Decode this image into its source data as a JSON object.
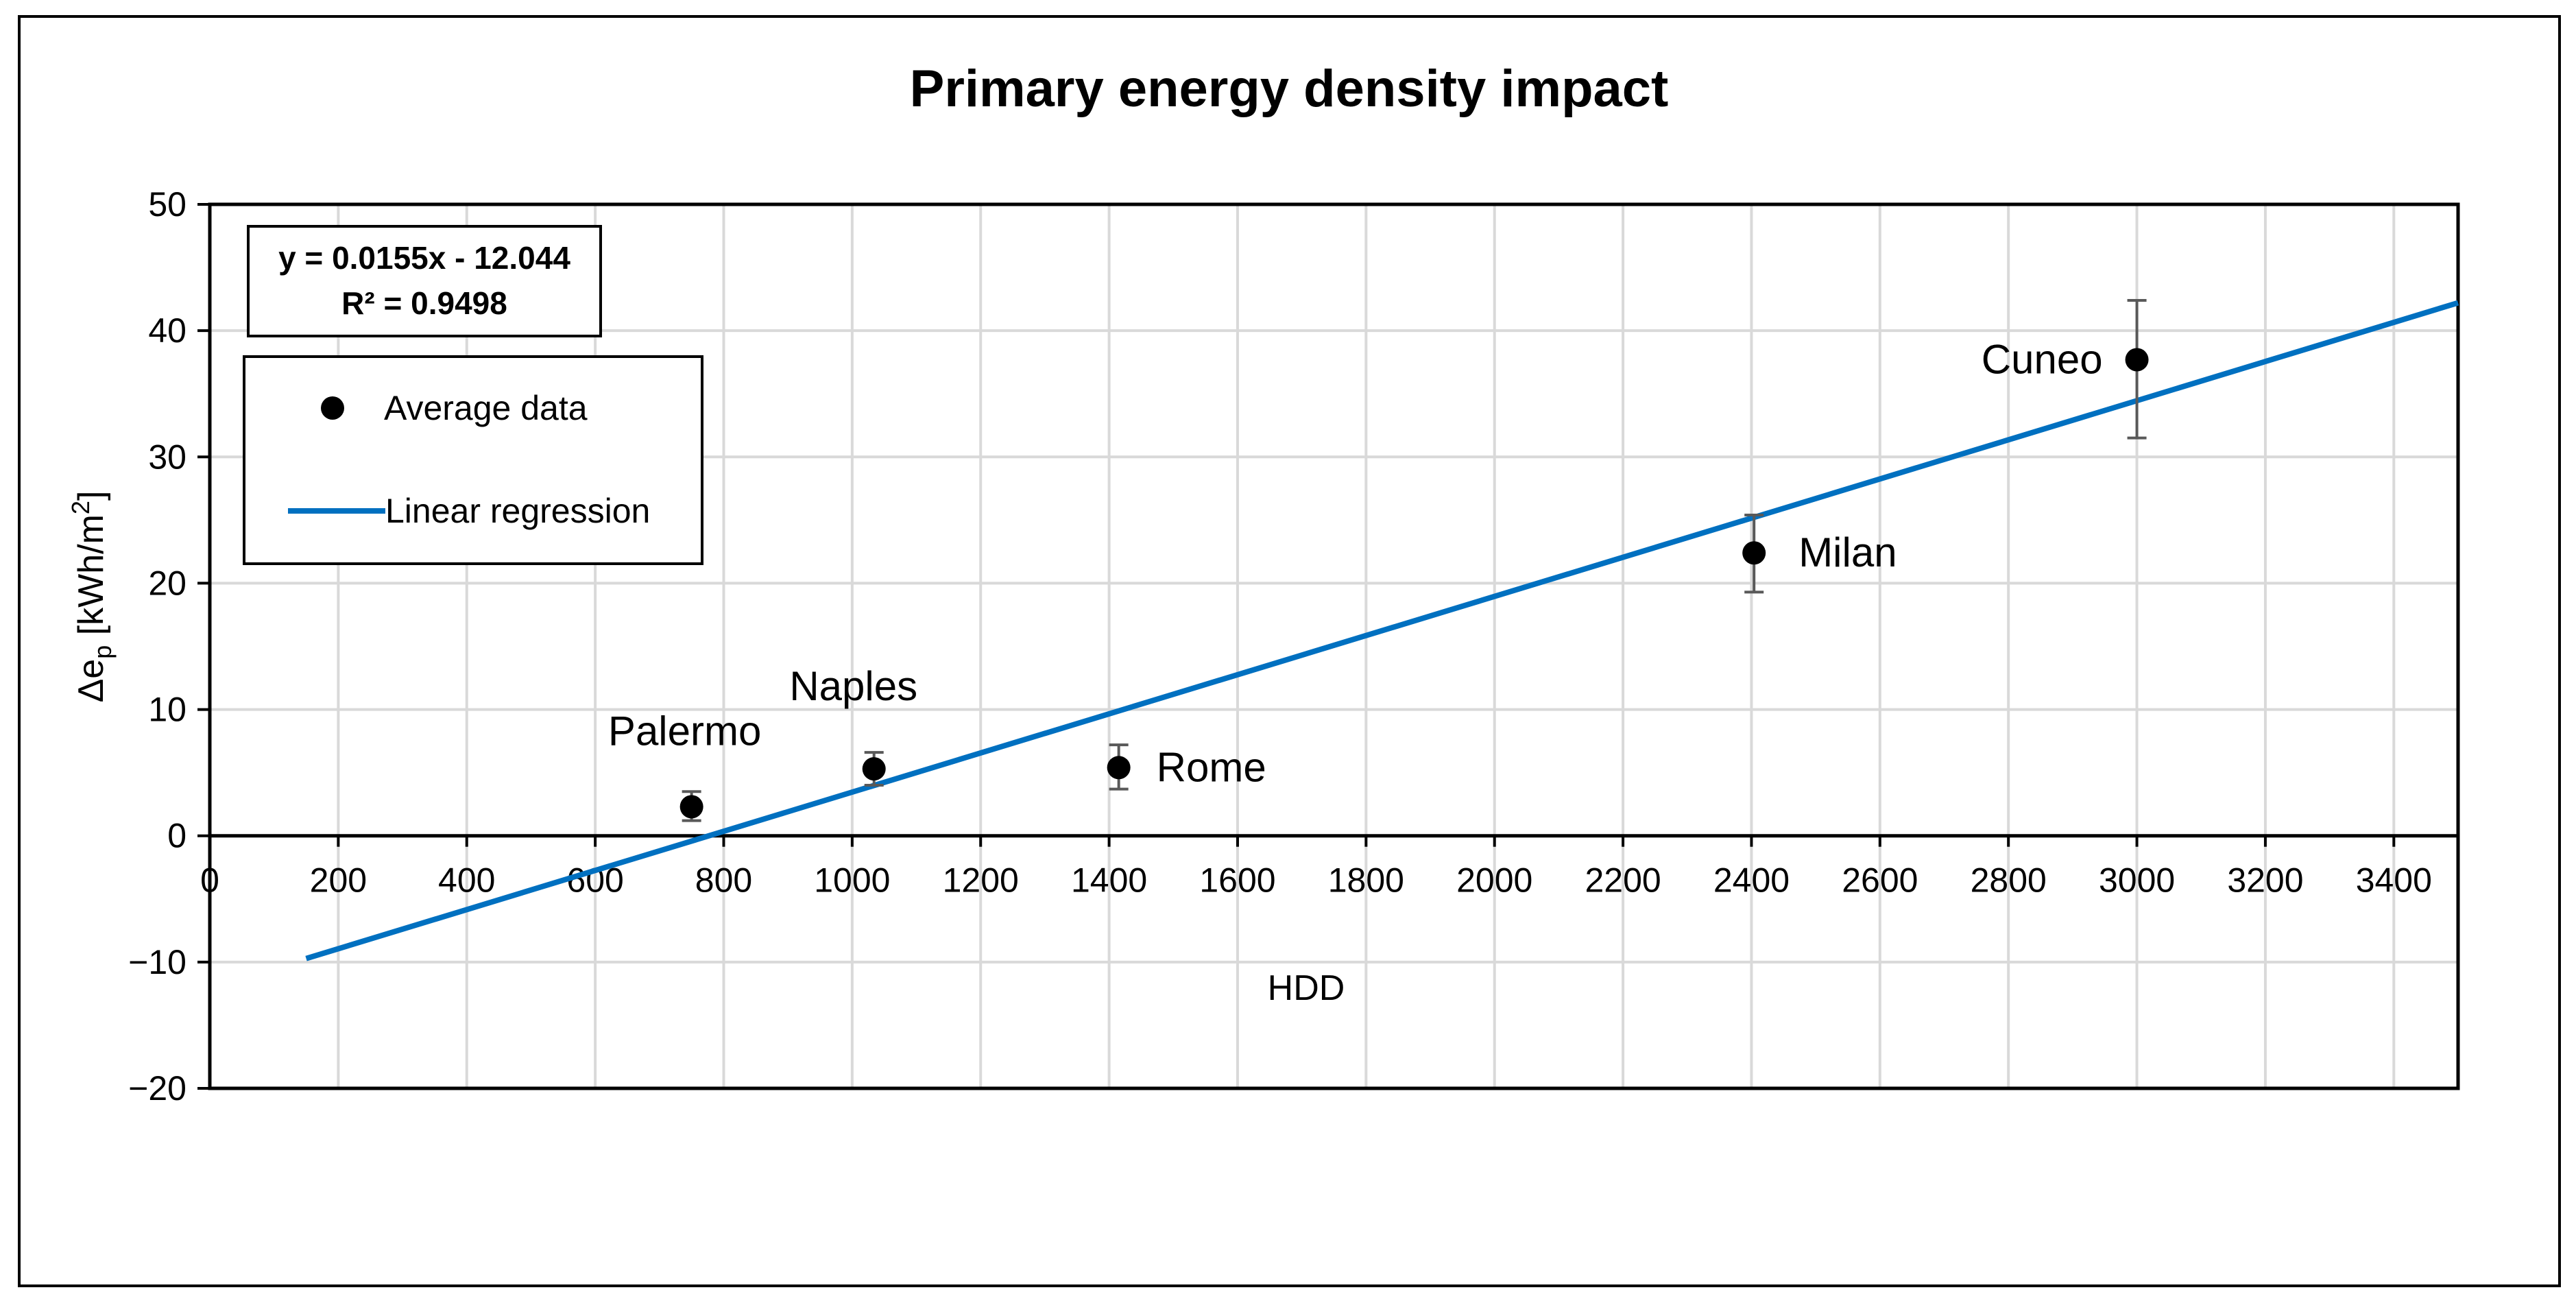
{
  "chart_data": {
    "type": "scatter",
    "title": "Primary energy density impact",
    "xlabel": "HDD",
    "ylabel": {
      "prefix": "Δe",
      "sub": "p",
      "unit": " [kWh/m",
      "sup": "2",
      "close": "]"
    },
    "xlim": [
      0,
      3500
    ],
    "ylim": [
      -20,
      50
    ],
    "x_ticks": [
      0,
      200,
      400,
      600,
      800,
      1000,
      1200,
      1400,
      1600,
      1800,
      2000,
      2200,
      2400,
      2600,
      2800,
      3000,
      3200,
      3400
    ],
    "y_ticks": [
      -20,
      -10,
      0,
      10,
      20,
      30,
      40,
      50
    ],
    "y_tick_labels": [
      "−20",
      "−10",
      "0",
      "10",
      "20",
      "30",
      "40",
      "50"
    ],
    "grid": true,
    "series": [
      {
        "name": "Average data",
        "kind": "points",
        "color": "#000000",
        "points": [
          {
            "label": "Palermo",
            "x": 750,
            "y": 2.3,
            "err_low": 1.2,
            "err_high": 3.5
          },
          {
            "label": "Naples",
            "x": 1034,
            "y": 5.3,
            "err_low": 4.0,
            "err_high": 6.6
          },
          {
            "label": "Rome",
            "x": 1415,
            "y": 5.4,
            "err_low": 3.7,
            "err_high": 7.2
          },
          {
            "label": "Milan",
            "x": 2404,
            "y": 22.4,
            "err_low": 19.3,
            "err_high": 25.4
          },
          {
            "label": "Cuneo",
            "x": 3000,
            "y": 37.7,
            "err_low": 31.5,
            "err_high": 42.4
          }
        ]
      },
      {
        "name": "Linear regression",
        "kind": "line",
        "color": "#0070C0",
        "slope": 0.0155,
        "intercept": -12.044,
        "x_start": 150,
        "x_end": 3500
      }
    ],
    "equation_box": {
      "line1": "y = 0.0155x - 12.044",
      "line2": "R² = 0.9498"
    },
    "legend_position": "top-left"
  }
}
